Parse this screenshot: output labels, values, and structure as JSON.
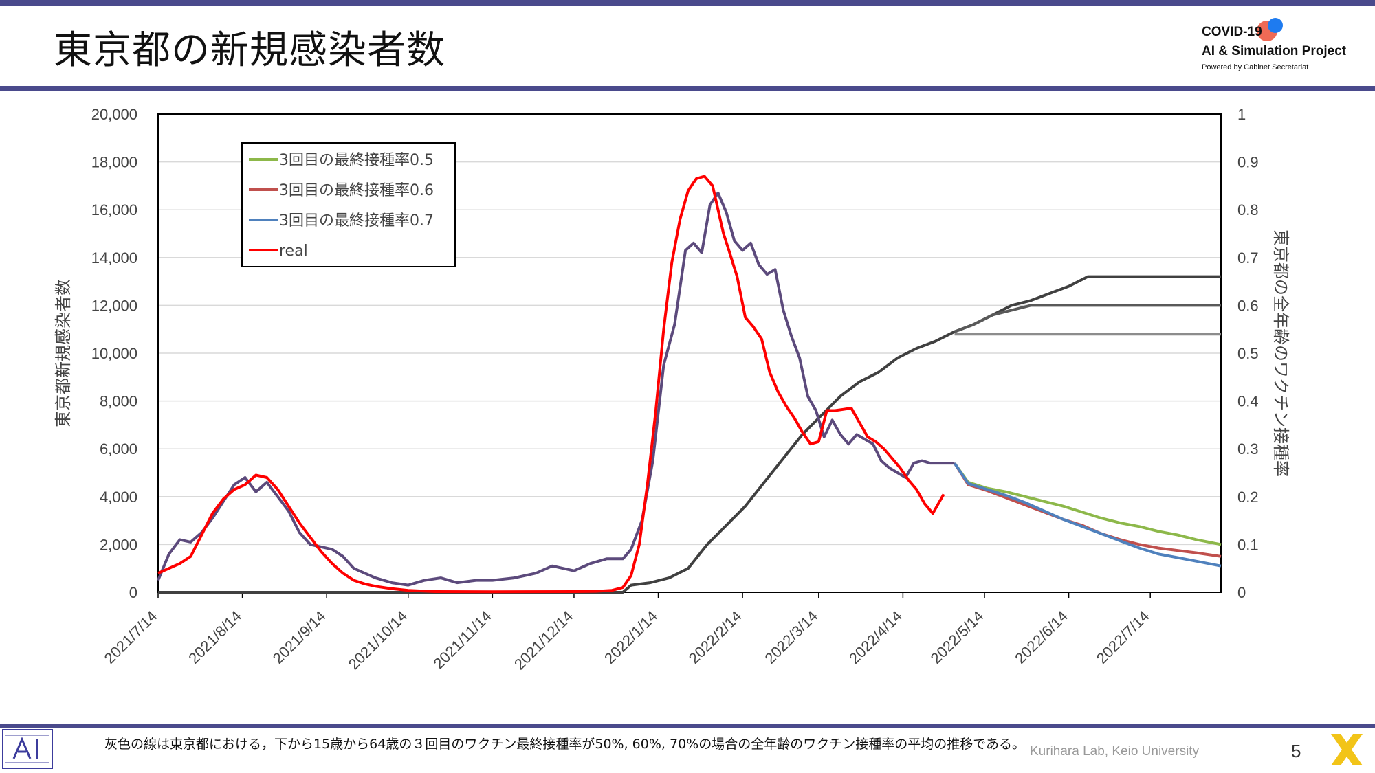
{
  "header": {
    "title": "東京都の新規感染者数",
    "logo": {
      "line1": "COVID-19",
      "line2": "AI & Simulation Project",
      "line3": "Powered by Cabinet Secretariat"
    }
  },
  "footer": {
    "note": "灰色の線は東京都における，下から15歳から64歳の３回目のワクチン最終接種率が50%, 60%, 70%の場合の全年齢のワクチン接種率の平均の推移である。",
    "credit": "Kurihara Lab, Keio University",
    "page": "5"
  },
  "colors": {
    "accent_bar": "#4a4a8c",
    "green": "#8db84a",
    "darkred": "#c0504d",
    "blue": "#4f81bd",
    "real": "#ff0000",
    "fit": "#5c4a7c"
  },
  "chart_data": {
    "type": "line",
    "title": "",
    "ylabel": "東京都新規感染者数",
    "y2label": "東京都の全年齢のワクチン接種率",
    "ylim": [
      0,
      20000
    ],
    "y2lim": [
      0,
      1
    ],
    "yticks": [
      "0",
      "2,000",
      "4,000",
      "6,000",
      "8,000",
      "10,000",
      "12,000",
      "14,000",
      "16,000",
      "18,000",
      "20,000"
    ],
    "y2ticks": [
      "0",
      "0.1",
      "0.2",
      "0.3",
      "0.4",
      "0.5",
      "0.6",
      "0.7",
      "0.8",
      "0.9",
      "1"
    ],
    "xticks": [
      "2021/7/14",
      "2021/8/14",
      "2021/9/14",
      "2021/10/14",
      "2021/11/14",
      "2021/12/14",
      "2022/1/14",
      "2022/2/14",
      "2022/3/14",
      "2022/4/14",
      "2022/5/14",
      "2022/6/14",
      "2022/7/14"
    ],
    "x_range": [
      "2021/7/14",
      "2022/8/9"
    ],
    "grid": "horizontal",
    "legend_position": "top-left",
    "legend": [
      "3回目の最終接種率0.5",
      "3回目の最終接種率0.6",
      "3回目の最終接種率0.7",
      "real"
    ],
    "series": [
      {
        "name": "real",
        "axis": "left",
        "x": [
          "2021/7/14",
          "2021/7/18",
          "2021/7/22",
          "2021/7/26",
          "2021/7/30",
          "2021/8/3",
          "2021/8/7",
          "2021/8/11",
          "2021/8/15",
          "2021/8/19",
          "2021/8/23",
          "2021/8/27",
          "2021/8/31",
          "2021/9/4",
          "2021/9/8",
          "2021/9/12",
          "2021/9/16",
          "2021/9/20",
          "2021/9/24",
          "2021/9/28",
          "2021/10/2",
          "2021/10/8",
          "2021/10/14",
          "2021/10/24",
          "2021/11/14",
          "2021/12/14",
          "2021/12/22",
          "2021/12/28",
          "2022/1/1",
          "2022/1/4",
          "2022/1/7",
          "2022/1/10",
          "2022/1/13",
          "2022/1/16",
          "2022/1/19",
          "2022/1/22",
          "2022/1/25",
          "2022/1/28",
          "2022/1/31",
          "2022/2/3",
          "2022/2/5",
          "2022/2/7",
          "2022/2/9",
          "2022/2/12",
          "2022/2/15",
          "2022/2/18",
          "2022/2/21",
          "2022/2/24",
          "2022/2/27",
          "2022/3/2",
          "2022/3/5",
          "2022/3/8",
          "2022/3/11",
          "2022/3/14",
          "2022/3/17",
          "2022/3/20",
          "2022/3/23",
          "2022/3/26",
          "2022/3/29",
          "2022/4/1",
          "2022/4/4",
          "2022/4/7",
          "2022/4/10",
          "2022/4/13",
          "2022/4/16",
          "2022/4/19",
          "2022/4/22",
          "2022/4/25",
          "2022/4/29"
        ],
        "y": [
          800,
          1000,
          1200,
          1500,
          2400,
          3300,
          3900,
          4300,
          4500,
          4900,
          4800,
          4300,
          3600,
          2900,
          2300,
          1700,
          1200,
          800,
          500,
          350,
          250,
          150,
          80,
          30,
          20,
          30,
          40,
          80,
          200,
          700,
          2000,
          4500,
          7500,
          11000,
          13800,
          15600,
          16800,
          17300,
          17400,
          17000,
          16000,
          15000,
          14300,
          13200,
          11500,
          11100,
          10600,
          9200,
          8400,
          7800,
          7300,
          6700,
          6200,
          6300,
          7600,
          7600,
          7650,
          7700,
          7100,
          6500,
          6300,
          6000,
          5600,
          5200,
          4700,
          4300,
          3700,
          3300,
          4100
        ]
      },
      {
        "name": "",
        "axis": "left",
        "x": [
          "2021/7/14",
          "2021/7/18",
          "2021/7/22",
          "2021/7/26",
          "2021/7/30",
          "2021/8/3",
          "2021/8/7",
          "2021/8/11",
          "2021/8/15",
          "2021/8/19",
          "2021/8/23",
          "2021/8/27",
          "2021/8/31",
          "2021/9/4",
          "2021/9/8",
          "2021/9/12",
          "2021/9/16",
          "2021/9/20",
          "2021/9/24",
          "2021/9/28",
          "2021/10/2",
          "2021/10/8",
          "2021/10/14",
          "2021/10/20",
          "2021/10/26",
          "2021/11/1",
          "2021/11/8",
          "2021/11/14",
          "2021/11/22",
          "2021/11/30",
          "2021/12/6",
          "2021/12/10",
          "2021/12/14",
          "2021/12/20",
          "2021/12/26",
          "2022/1/1",
          "2022/1/4",
          "2022/1/8",
          "2022/1/12",
          "2022/1/16",
          "2022/1/20",
          "2022/1/24",
          "2022/1/27",
          "2022/1/30",
          "2022/2/2",
          "2022/2/5",
          "2022/2/8",
          "2022/2/11",
          "2022/2/14",
          "2022/2/17",
          "2022/2/20",
          "2022/2/23",
          "2022/2/26",
          "2022/3/1",
          "2022/3/4",
          "2022/3/7",
          "2022/3/10",
          "2022/3/13",
          "2022/3/16",
          "2022/3/19",
          "2022/3/22",
          "2022/3/25",
          "2022/3/28",
          "2022/3/31",
          "2022/4/3",
          "2022/4/6",
          "2022/4/9",
          "2022/4/12",
          "2022/4/15",
          "2022/4/18",
          "2022/4/21",
          "2022/4/24",
          "2022/4/27",
          "2022/4/30",
          "2022/5/3"
        ],
        "y": [
          500,
          1600,
          2200,
          2100,
          2500,
          3100,
          3800,
          4500,
          4800,
          4200,
          4600,
          4000,
          3400,
          2500,
          2000,
          1900,
          1800,
          1500,
          1000,
          800,
          600,
          400,
          300,
          500,
          600,
          400,
          500,
          500,
          600,
          800,
          1100,
          1000,
          900,
          1200,
          1400,
          1400,
          1800,
          3000,
          5500,
          9500,
          11200,
          14300,
          14600,
          14200,
          16200,
          16700,
          15900,
          14700,
          14300,
          14600,
          13700,
          13300,
          13500,
          11800,
          10700,
          9800,
          8200,
          7600,
          6500,
          7200,
          6600,
          6200,
          6600,
          6400,
          6200,
          5500,
          5200,
          5000,
          4800,
          5400,
          5500,
          5400,
          5400,
          5400,
          5400
        ]
      },
      {
        "name": "3回目の最終接種率0.5",
        "axis": "left",
        "x": [
          "2022/5/3",
          "2022/5/8",
          "2022/5/15",
          "2022/5/22",
          "2022/5/29",
          "2022/6/5",
          "2022/6/12",
          "2022/6/19",
          "2022/6/26",
          "2022/7/3",
          "2022/7/10",
          "2022/7/17",
          "2022/7/24",
          "2022/7/31",
          "2022/8/9"
        ],
        "y": [
          5400,
          4600,
          4350,
          4200,
          4000,
          3800,
          3600,
          3350,
          3100,
          2900,
          2750,
          2550,
          2400,
          2200,
          2000
        ]
      },
      {
        "name": "3回目の最終接種率0.6",
        "axis": "left",
        "x": [
          "2022/5/3",
          "2022/5/8",
          "2022/5/15",
          "2022/5/22",
          "2022/5/29",
          "2022/6/5",
          "2022/6/12",
          "2022/6/19",
          "2022/6/26",
          "2022/7/3",
          "2022/7/10",
          "2022/7/17",
          "2022/7/24",
          "2022/7/31",
          "2022/8/9"
        ],
        "y": [
          5400,
          4500,
          4250,
          3950,
          3650,
          3350,
          3050,
          2800,
          2450,
          2200,
          2000,
          1850,
          1750,
          1650,
          1500
        ]
      },
      {
        "name": "3回目の最終接種率0.7",
        "axis": "left",
        "x": [
          "2022/5/3",
          "2022/5/8",
          "2022/5/15",
          "2022/5/22",
          "2022/5/29",
          "2022/6/5",
          "2022/6/12",
          "2022/6/19",
          "2022/6/26",
          "2022/7/3",
          "2022/7/10",
          "2022/7/17",
          "2022/7/24",
          "2022/7/31",
          "2022/8/9"
        ],
        "y": [
          5400,
          4550,
          4300,
          4050,
          3750,
          3400,
          3050,
          2750,
          2450,
          2150,
          1850,
          1600,
          1450,
          1300,
          1100
        ]
      },
      {
        "name": "",
        "axis": "right",
        "x": [
          "2021/7/14",
          "2022/1/1",
          "2022/1/4",
          "2022/1/11",
          "2022/1/18",
          "2022/1/25",
          "2022/2/1",
          "2022/2/8",
          "2022/2/15",
          "2022/2/22",
          "2022/3/1",
          "2022/3/8",
          "2022/3/15",
          "2022/3/22",
          "2022/3/29",
          "2022/4/5",
          "2022/4/12",
          "2022/4/19",
          "2022/4/26",
          "2022/5/3",
          "2022/5/10",
          "2022/5/17",
          "2022/5/24",
          "2022/5/31",
          "2022/6/7",
          "2022/6/14",
          "2022/6/21",
          "2022/8/9"
        ],
        "y": [
          0,
          0,
          0.015,
          0.02,
          0.03,
          0.05,
          0.1,
          0.14,
          0.18,
          0.23,
          0.28,
          0.33,
          0.37,
          0.41,
          0.44,
          0.46,
          0.49,
          0.51,
          0.525,
          0.545,
          0.56,
          0.58,
          0.6,
          0.61,
          0.625,
          0.64,
          0.66,
          0.66
        ]
      },
      {
        "name": "",
        "axis": "right",
        "x": [
          "2022/5/3",
          "2022/5/10",
          "2022/5/17",
          "2022/5/24",
          "2022/5/31",
          "2022/8/9"
        ],
        "y": [
          0.545,
          0.56,
          0.58,
          0.59,
          0.6,
          0.6
        ]
      },
      {
        "name": "",
        "axis": "right",
        "x": [
          "2022/5/3",
          "2022/8/9"
        ],
        "y": [
          0.54,
          0.54
        ]
      }
    ]
  }
}
